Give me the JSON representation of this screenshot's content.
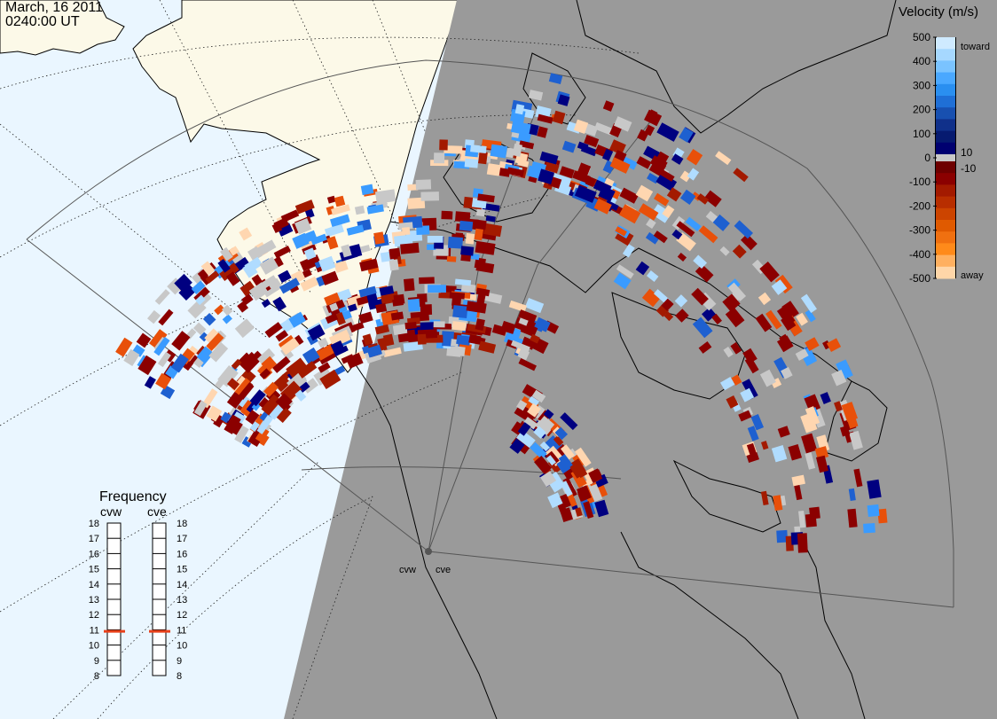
{
  "header": {
    "date": "March, 16 2011",
    "time": "0240:00 UT"
  },
  "velocity_legend": {
    "title": "Velocity (m/s)",
    "ticks": [
      {
        "label": "500",
        "value": 500
      },
      {
        "label": "400",
        "value": 400
      },
      {
        "label": "300",
        "value": 300
      },
      {
        "label": "200",
        "value": 200
      },
      {
        "label": "100",
        "value": 100
      },
      {
        "label": "0",
        "value": 0
      },
      {
        "label": "-100",
        "value": -100
      },
      {
        "label": "-200",
        "value": -200
      },
      {
        "label": "-300",
        "value": -300
      },
      {
        "label": "-400",
        "value": -400
      },
      {
        "label": "-500",
        "value": -500
      }
    ],
    "small_labels": {
      "pos": "10",
      "neg": "-10"
    },
    "toward_label": "toward",
    "away_label": "away",
    "colors": {
      "toward_light": "#d6ecff",
      "toward_mid": "#1e90ff",
      "toward_dark": "#000080",
      "zero_band": "#c8c8c8",
      "away_dark": "#8b0000",
      "away_mid": "#e8500a",
      "away_light": "#ffdab0"
    }
  },
  "frequency_panel": {
    "title": "Frequency",
    "radar_left": "cvw",
    "radar_right": "cve",
    "ticks": [
      "8",
      "9",
      "10",
      "11",
      "12",
      "13",
      "14",
      "15",
      "16",
      "17",
      "18"
    ],
    "freq_min": 8,
    "freq_max": 18,
    "cvw_freq": 10.9,
    "cve_freq": 10.9,
    "marker_color": "#e8401a"
  },
  "map": {
    "night_color": "#9a9a9a",
    "ocean_day_color": "#eaf6ff",
    "land_day_color": "#fcf9e8",
    "radar_sites": [
      "cvw",
      "cve"
    ]
  }
}
